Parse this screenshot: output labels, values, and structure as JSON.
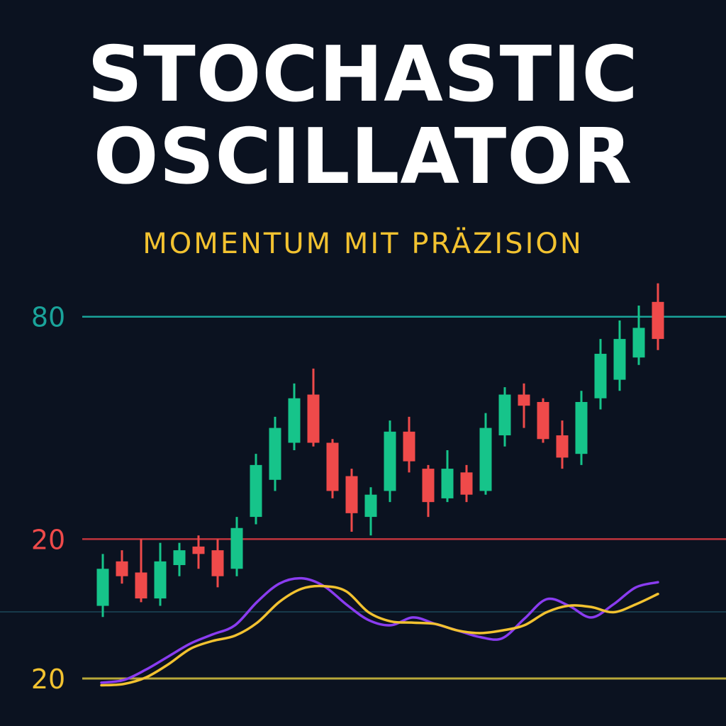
{
  "header": {
    "title_line1": "STOCHASTIC",
    "title_line2": "OSCILLATOR",
    "subtitle": "MOMENTUM MIT PRÄZISION"
  },
  "colors": {
    "background": "#0b1220",
    "title": "#ffffff",
    "subtitle": "#f2c230",
    "bullish": "#16c48a",
    "bearish": "#ef4a4a",
    "level_80": "#1aa39a",
    "level_20_price": "#c0343c",
    "level_20_osc": "#b8a83a",
    "mid_line": "#173a4a",
    "k_line": "#8a3cf0",
    "d_line": "#f2c230"
  },
  "chart_data": [
    {
      "type": "candlestick",
      "title": "",
      "levels": [
        {
          "label": "80",
          "value": 80,
          "color": "#1aa39a"
        },
        {
          "label": "20",
          "value": 20,
          "color": "#ef4a4a"
        }
      ],
      "ylim": [
        0,
        92
      ],
      "candles": [
        {
          "open": 2,
          "close": 12,
          "high": 16,
          "low": -1
        },
        {
          "open": 14,
          "close": 10,
          "high": 17,
          "low": 8
        },
        {
          "open": 11,
          "close": 4,
          "high": 20,
          "low": 3
        },
        {
          "open": 4,
          "close": 14,
          "high": 19,
          "low": 2
        },
        {
          "open": 13,
          "close": 17,
          "high": 19,
          "low": 10
        },
        {
          "open": 18,
          "close": 16,
          "high": 21,
          "low": 12
        },
        {
          "open": 17,
          "close": 10,
          "high": 20,
          "low": 7
        },
        {
          "open": 12,
          "close": 23,
          "high": 26,
          "low": 10
        },
        {
          "open": 26,
          "close": 40,
          "high": 43,
          "low": 24
        },
        {
          "open": 36,
          "close": 50,
          "high": 53,
          "low": 33
        },
        {
          "open": 46,
          "close": 58,
          "high": 62,
          "low": 44
        },
        {
          "open": 59,
          "close": 46,
          "high": 66,
          "low": 45
        },
        {
          "open": 46,
          "close": 33,
          "high": 47,
          "low": 31
        },
        {
          "open": 37,
          "close": 27,
          "high": 39,
          "low": 22
        },
        {
          "open": 26,
          "close": 32,
          "high": 34,
          "low": 21
        },
        {
          "open": 33,
          "close": 49,
          "high": 52,
          "low": 30
        },
        {
          "open": 49,
          "close": 41,
          "high": 53,
          "low": 38
        },
        {
          "open": 39,
          "close": 30,
          "high": 40,
          "low": 26
        },
        {
          "open": 31,
          "close": 39,
          "high": 44,
          "low": 30
        },
        {
          "open": 38,
          "close": 32,
          "high": 40,
          "low": 30
        },
        {
          "open": 33,
          "close": 50,
          "high": 54,
          "low": 32
        },
        {
          "open": 48,
          "close": 59,
          "high": 61,
          "low": 45
        },
        {
          "open": 59,
          "close": 56,
          "high": 62,
          "low": 50
        },
        {
          "open": 57,
          "close": 47,
          "high": 58,
          "low": 46
        },
        {
          "open": 48,
          "close": 42,
          "high": 52,
          "low": 39
        },
        {
          "open": 43,
          "close": 57,
          "high": 60,
          "low": 40
        },
        {
          "open": 58,
          "close": 70,
          "high": 74,
          "low": 55
        },
        {
          "open": 63,
          "close": 74,
          "high": 79,
          "low": 60
        },
        {
          "open": 69,
          "close": 77,
          "high": 83,
          "low": 67
        },
        {
          "open": 84,
          "close": 74,
          "high": 89,
          "low": 71
        }
      ]
    },
    {
      "type": "line",
      "title": "",
      "levels": [
        {
          "label": "20",
          "value": 20,
          "color": "#f2c230"
        }
      ],
      "ylim": [
        0,
        100
      ],
      "series": [
        {
          "color": "#8a3cf0",
          "values": [
            18,
            20,
            28,
            38,
            48,
            55,
            62,
            80,
            94,
            98,
            92,
            78,
            66,
            62,
            68,
            63,
            58,
            53,
            52,
            67,
            82,
            77,
            68,
            78,
            91,
            95
          ]
        },
        {
          "color": "#f2c230",
          "values": [
            16,
            17,
            22,
            32,
            44,
            50,
            54,
            64,
            80,
            90,
            92,
            88,
            72,
            65,
            64,
            63,
            58,
            56,
            58,
            62,
            72,
            77,
            76,
            72,
            78,
            86
          ]
        }
      ]
    }
  ]
}
